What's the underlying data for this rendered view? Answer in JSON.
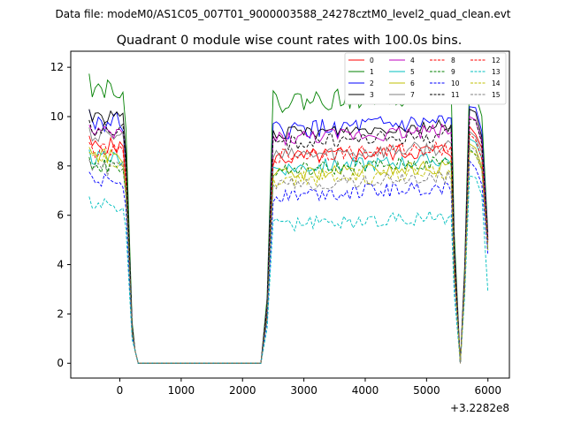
{
  "chart_data": {
    "type": "line",
    "suptitle": "Data file: modeM0/AS1C05_007T01_9000003588_24278cztM0_level2_quad_clean.evt",
    "title": "Quadrant 0 module wise count rates with 100.0s bins.",
    "xlabel": "",
    "ylabel": "",
    "x_offset_label": "+3.2282e8",
    "xlim": [
      -800,
      6350
    ],
    "ylim": [
      -0.6,
      12.65
    ],
    "xticks": [
      0,
      1000,
      2000,
      3000,
      4000,
      5000,
      6000
    ],
    "xtick_labels": [
      "0",
      "1000",
      "2000",
      "3000",
      "4000",
      "5000",
      "6000"
    ],
    "yticks": [
      0,
      2,
      4,
      6,
      8,
      10,
      12
    ],
    "ytick_labels": [
      "0",
      "2",
      "4",
      "6",
      "8",
      "10",
      "12"
    ],
    "grid": false,
    "legend_position": "top-right",
    "legend_columns": 4,
    "x_segments": [
      {
        "start": -500,
        "end": 100
      },
      {
        "start": 200,
        "end": 200
      },
      {
        "start": 300,
        "end": 2300
      },
      {
        "start": 2400,
        "end": 2400
      },
      {
        "start": 2500,
        "end": 5400
      },
      {
        "start": 5500,
        "end": 5500
      },
      {
        "start": 5600,
        "end": 5600
      },
      {
        "start": 5700,
        "end": 6000
      }
    ],
    "series": [
      {
        "name": "0",
        "color": "#ff0000",
        "dash": "solid",
        "level_pre": 8.8,
        "level_mid": 8.3,
        "level_post": 9.6,
        "end": 5.0,
        "noise": 0.35
      },
      {
        "name": "1",
        "color": "#008000",
        "dash": "solid",
        "level_pre": 11.2,
        "level_mid": 10.6,
        "level_post": 11.3,
        "end": 5.3,
        "noise": 0.45
      },
      {
        "name": "2",
        "color": "#0000ff",
        "dash": "solid",
        "level_pre": 9.8,
        "level_mid": 9.4,
        "level_post": 10.4,
        "end": 5.1,
        "noise": 0.4
      },
      {
        "name": "3",
        "color": "#000000",
        "dash": "solid",
        "level_pre": 10.0,
        "level_mid": 9.3,
        "level_post": 10.3,
        "end": 5.0,
        "noise": 0.25
      },
      {
        "name": "4",
        "color": "#bf00bf",
        "dash": "solid",
        "level_pre": 9.3,
        "level_mid": 9.1,
        "level_post": 10.0,
        "end": 5.1,
        "noise": 0.3
      },
      {
        "name": "5",
        "color": "#00bfbf",
        "dash": "solid",
        "level_pre": 8.3,
        "level_mid": 7.9,
        "level_post": 9.1,
        "end": 4.7,
        "noise": 0.3
      },
      {
        "name": "6",
        "color": "#bfbf00",
        "dash": "solid",
        "level_pre": 8.4,
        "level_mid": 7.6,
        "level_post": 8.9,
        "end": 4.6,
        "noise": 0.3
      },
      {
        "name": "7",
        "color": "#808080",
        "dash": "solid",
        "level_pre": 9.2,
        "level_mid": 8.4,
        "level_post": 9.4,
        "end": 4.9,
        "noise": 0.3
      },
      {
        "name": "8",
        "color": "#ff0000",
        "dash": "dashed",
        "level_pre": 8.6,
        "level_mid": 8.4,
        "level_post": 9.3,
        "end": 4.9,
        "noise": 0.3
      },
      {
        "name": "9",
        "color": "#008000",
        "dash": "dashed",
        "level_pre": 8.0,
        "level_mid": 7.8,
        "level_post": 8.7,
        "end": 4.6,
        "noise": 0.3
      },
      {
        "name": "10",
        "color": "#0000ff",
        "dash": "dashed",
        "level_pre": 7.4,
        "level_mid": 6.8,
        "level_post": 8.2,
        "end": 4.4,
        "noise": 0.3
      },
      {
        "name": "11",
        "color": "#000000",
        "dash": "dashed",
        "level_pre": 9.5,
        "level_mid": 8.9,
        "level_post": 9.9,
        "end": 5.0,
        "noise": 0.3
      },
      {
        "name": "12",
        "color": "#ff0000",
        "dash": "dashed",
        "level_pre": 0,
        "level_mid": 0,
        "level_post": 0,
        "end": 0,
        "noise": 0
      },
      {
        "name": "13",
        "color": "#00bfbf",
        "dash": "dashed",
        "level_pre": 6.4,
        "level_mid": 5.6,
        "level_post": 7.6,
        "end": 2.9,
        "noise": 0.3
      },
      {
        "name": "14",
        "color": "#bfbf00",
        "dash": "dashed",
        "level_pre": 8.2,
        "level_mid": 7.4,
        "level_post": 8.6,
        "end": 4.6,
        "noise": 0.3
      },
      {
        "name": "15",
        "color": "#808080",
        "dash": "dashed",
        "level_pre": 7.9,
        "level_mid": 7.2,
        "level_post": 8.8,
        "end": 4.7,
        "noise": 0.3
      }
    ]
  }
}
